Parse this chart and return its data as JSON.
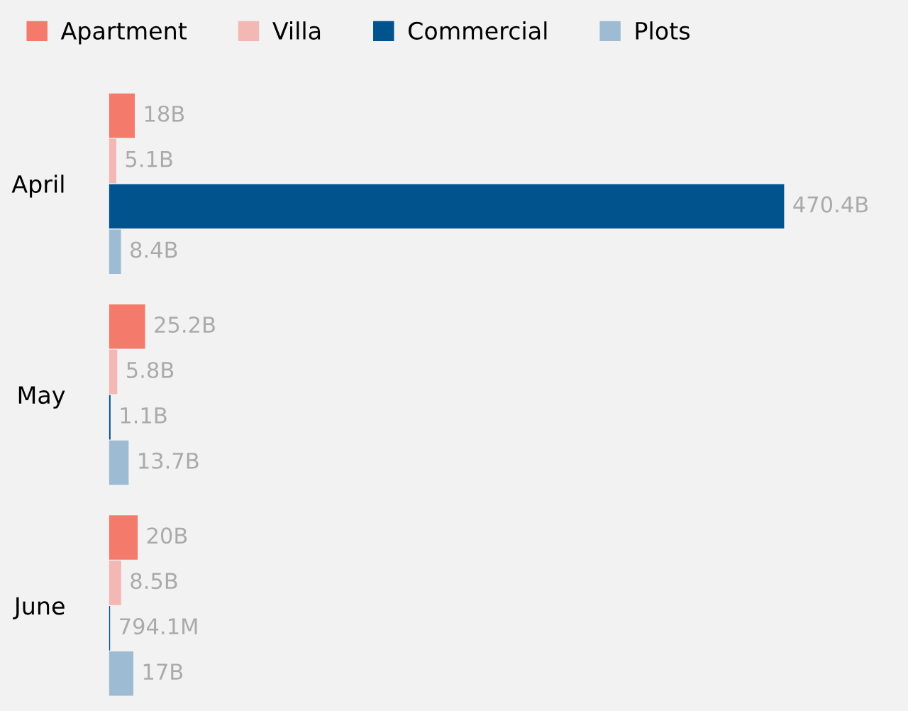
{
  "chart_data": {
    "type": "bar",
    "orientation": "horizontal",
    "categories": [
      "April",
      "May",
      "June"
    ],
    "series": [
      {
        "name": "Apartment",
        "color": "#f47a6b",
        "values": [
          18000000000,
          25200000000,
          20000000000
        ],
        "value_labels": [
          "18B",
          "25.2B",
          "20B"
        ]
      },
      {
        "name": "Villa",
        "color": "#f4b8b4",
        "values": [
          5100000000,
          5800000000,
          8500000000
        ],
        "value_labels": [
          "5.1B",
          "5.8B",
          "8.5B"
        ]
      },
      {
        "name": "Commercial",
        "color": "#01538d",
        "values": [
          470400000000,
          1100000000,
          794100000
        ],
        "value_labels": [
          "470.4B",
          "1.1B",
          "794.1M"
        ]
      },
      {
        "name": "Plots",
        "color": "#9dbcd3",
        "values": [
          8400000000,
          13700000000,
          17000000000
        ],
        "value_labels": [
          "8.4B",
          "13.7B",
          "17B"
        ]
      }
    ],
    "legend": "top left",
    "grid": false
  }
}
